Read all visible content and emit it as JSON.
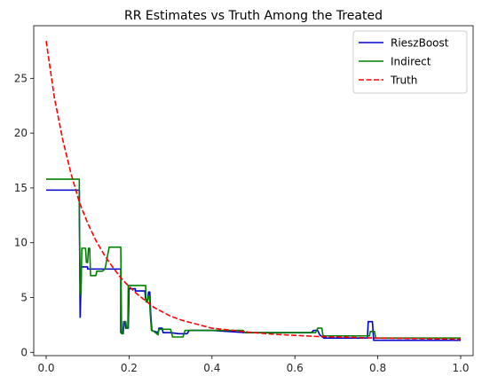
{
  "chart_data": {
    "type": "line",
    "title": "RR Estimates vs Truth Among the Treated",
    "xlabel": "",
    "ylabel": "",
    "xlim": [
      -0.03,
      1.03
    ],
    "ylim": [
      -0.3,
      29.8
    ],
    "x_ticks": [
      0.0,
      0.2,
      0.4,
      0.6,
      0.8,
      1.0
    ],
    "x_tick_labels": [
      "0.0",
      "0.2",
      "0.4",
      "0.6",
      "0.8",
      "1.0"
    ],
    "y_ticks": [
      0,
      5,
      10,
      15,
      20,
      25
    ],
    "y_tick_labels": [
      "0",
      "5",
      "10",
      "15",
      "20",
      "25"
    ],
    "grid": false,
    "legend_position": "top-right",
    "series": [
      {
        "name": "RieszBoost",
        "color": "#0000cc",
        "dash": "solid",
        "points": [
          [
            0.0,
            14.8
          ],
          [
            0.08,
            14.8
          ],
          [
            0.08,
            13.0
          ],
          [
            0.082,
            3.2
          ],
          [
            0.085,
            7.8
          ],
          [
            0.1,
            7.8
          ],
          [
            0.1,
            7.6
          ],
          [
            0.18,
            7.6
          ],
          [
            0.18,
            1.8
          ],
          [
            0.185,
            1.8
          ],
          [
            0.187,
            2.8
          ],
          [
            0.19,
            2.8
          ],
          [
            0.192,
            2.2
          ],
          [
            0.198,
            2.2
          ],
          [
            0.2,
            5.8
          ],
          [
            0.215,
            5.8
          ],
          [
            0.215,
            5.6
          ],
          [
            0.238,
            5.6
          ],
          [
            0.24,
            4.8
          ],
          [
            0.245,
            4.8
          ],
          [
            0.247,
            5.5
          ],
          [
            0.25,
            5.5
          ],
          [
            0.252,
            3.6
          ],
          [
            0.255,
            2.0
          ],
          [
            0.27,
            1.8
          ],
          [
            0.272,
            2.2
          ],
          [
            0.28,
            2.2
          ],
          [
            0.282,
            1.8
          ],
          [
            0.3,
            1.8
          ],
          [
            0.32,
            1.7
          ],
          [
            0.34,
            1.7
          ],
          [
            0.345,
            2.0
          ],
          [
            0.4,
            2.0
          ],
          [
            0.48,
            1.8
          ],
          [
            0.6,
            1.8
          ],
          [
            0.64,
            1.8
          ],
          [
            0.645,
            2.0
          ],
          [
            0.655,
            2.0
          ],
          [
            0.66,
            1.6
          ],
          [
            0.67,
            1.3
          ],
          [
            0.775,
            1.3
          ],
          [
            0.777,
            2.8
          ],
          [
            0.787,
            2.8
          ],
          [
            0.79,
            1.1
          ],
          [
            1.0,
            1.1
          ]
        ]
      },
      {
        "name": "Indirect",
        "color": "#008000",
        "dash": "solid",
        "points": [
          [
            0.0,
            15.8
          ],
          [
            0.08,
            15.8
          ],
          [
            0.08,
            13.0
          ],
          [
            0.082,
            5.8
          ],
          [
            0.084,
            5.2
          ],
          [
            0.086,
            9.5
          ],
          [
            0.095,
            9.5
          ],
          [
            0.097,
            8.2
          ],
          [
            0.1,
            8.2
          ],
          [
            0.102,
            9.5
          ],
          [
            0.105,
            9.5
          ],
          [
            0.107,
            7.0
          ],
          [
            0.12,
            7.0
          ],
          [
            0.122,
            7.4
          ],
          [
            0.135,
            7.4
          ],
          [
            0.142,
            7.6
          ],
          [
            0.152,
            9.6
          ],
          [
            0.18,
            9.6
          ],
          [
            0.182,
            1.7
          ],
          [
            0.186,
            1.7
          ],
          [
            0.188,
            2.8
          ],
          [
            0.192,
            2.8
          ],
          [
            0.194,
            2.2
          ],
          [
            0.197,
            2.2
          ],
          [
            0.198,
            6.1
          ],
          [
            0.24,
            6.1
          ],
          [
            0.241,
            4.6
          ],
          [
            0.244,
            4.6
          ],
          [
            0.246,
            5.1
          ],
          [
            0.249,
            5.1
          ],
          [
            0.251,
            3.6
          ],
          [
            0.254,
            2.0
          ],
          [
            0.26,
            1.9
          ],
          [
            0.27,
            1.6
          ],
          [
            0.272,
            2.1
          ],
          [
            0.3,
            2.1
          ],
          [
            0.305,
            1.4
          ],
          [
            0.33,
            1.4
          ],
          [
            0.335,
            2.0
          ],
          [
            0.475,
            2.0
          ],
          [
            0.48,
            1.8
          ],
          [
            0.65,
            1.8
          ],
          [
            0.655,
            2.2
          ],
          [
            0.665,
            2.2
          ],
          [
            0.668,
            1.5
          ],
          [
            0.78,
            1.5
          ],
          [
            0.782,
            1.9
          ],
          [
            0.792,
            1.9
          ],
          [
            0.795,
            1.3
          ],
          [
            1.0,
            1.3
          ]
        ]
      },
      {
        "name": "Truth",
        "color": "#ff0000",
        "dash": "dashed",
        "formula_note": "",
        "points": [
          [
            0.0,
            28.4
          ],
          [
            0.02,
            23.2
          ],
          [
            0.04,
            19.4
          ],
          [
            0.06,
            16.3
          ],
          [
            0.08,
            13.7
          ],
          [
            0.1,
            11.8
          ],
          [
            0.12,
            10.2
          ],
          [
            0.14,
            8.9
          ],
          [
            0.16,
            7.8
          ],
          [
            0.18,
            6.8
          ],
          [
            0.2,
            6.0
          ],
          [
            0.22,
            5.3
          ],
          [
            0.24,
            4.7
          ],
          [
            0.26,
            4.1
          ],
          [
            0.28,
            3.7
          ],
          [
            0.3,
            3.3
          ],
          [
            0.33,
            2.9
          ],
          [
            0.36,
            2.6
          ],
          [
            0.4,
            2.2
          ],
          [
            0.45,
            2.0
          ],
          [
            0.5,
            1.8
          ],
          [
            0.55,
            1.65
          ],
          [
            0.6,
            1.55
          ],
          [
            0.65,
            1.45
          ],
          [
            0.7,
            1.4
          ],
          [
            0.75,
            1.35
          ],
          [
            0.8,
            1.3
          ],
          [
            0.85,
            1.28
          ],
          [
            0.9,
            1.25
          ],
          [
            0.95,
            1.22
          ],
          [
            1.0,
            1.2
          ]
        ]
      }
    ]
  }
}
